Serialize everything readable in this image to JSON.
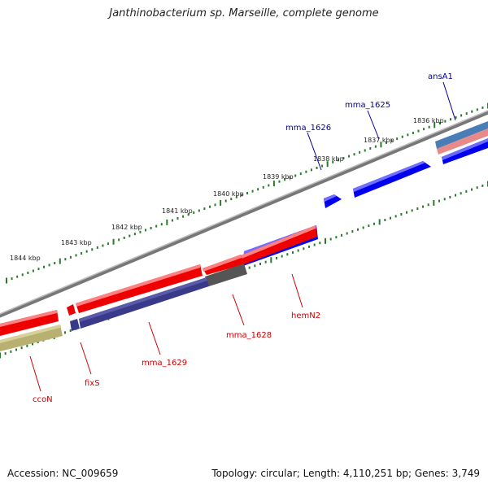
{
  "title": "Janthinobacterium sp. Marseille, complete genome",
  "footer": {
    "accession": "Accession: NC_009659",
    "summary": "Topology: circular; Length: 4,110,251 bp; Genes: 3,749"
  },
  "colors": {
    "forward_strand": "#0000ee",
    "reverse_strand": "#ee0000",
    "label_forward": "#000099",
    "label_reverse": "#cc0000",
    "backbone": "#888888",
    "ticks": "#2a7a2a"
  },
  "scale_ticks": [
    {
      "label": "1836 kbp"
    },
    {
      "label": "1837 kbp"
    },
    {
      "label": "1838 kbp"
    },
    {
      "label": "1839 kbp"
    },
    {
      "label": "1840 kbp"
    },
    {
      "label": "1841 kbp"
    },
    {
      "label": "1842 kbp"
    },
    {
      "label": "1843 kbp"
    },
    {
      "label": "1844 kbp"
    }
  ],
  "genes": [
    {
      "name": "ansA1",
      "strand": "forward"
    },
    {
      "name": "mma_1625",
      "strand": "forward"
    },
    {
      "name": "mma_1626",
      "strand": "forward"
    },
    {
      "name": "hemN2",
      "strand": "reverse"
    },
    {
      "name": "mma_1628",
      "strand": "reverse"
    },
    {
      "name": "mma_1629",
      "strand": "reverse"
    },
    {
      "name": "fixS",
      "strand": "reverse"
    },
    {
      "name": "ccoN",
      "strand": "reverse"
    }
  ]
}
